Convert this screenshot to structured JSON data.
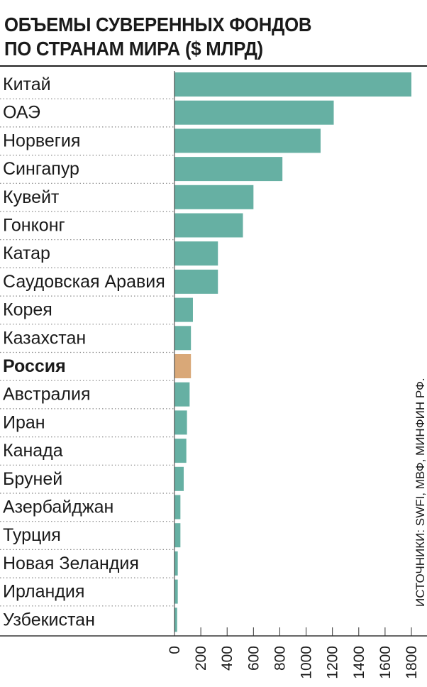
{
  "title_lines": [
    "ОБЪЕМЫ СУВЕРЕННЫХ ФОНДОВ",
    "ПО СТРАНАМ МИРА ($ МЛРД)"
  ],
  "source": "ИСТОЧНИКИ: SWFI, МВФ, МИНФИН РФ.",
  "colors": {
    "bar": "#66b0a3",
    "highlight": "#d9a878",
    "text": "#1a1a1a",
    "axis": "#333333",
    "dots": "#888888"
  },
  "chart_data": {
    "type": "bar",
    "orientation": "horizontal",
    "title": "ОБЪЕМЫ СУВЕРЕННЫХ ФОНДОВ ПО СТРАНАМ МИРА ($ МЛРД)",
    "categories": [
      "Китай",
      "ОАЭ",
      "Норвегия",
      "Сингапур",
      "Кувейт",
      "Гонконг",
      "Катар",
      "Саудовская Аравия",
      "Корея",
      "Казахстан",
      "Россия",
      "Австралия",
      "Иран",
      "Канада",
      "Бруней",
      "Азербайджан",
      "Турция",
      "Новая Зеландия",
      "Ирландия",
      "Узбекистан"
    ],
    "values": [
      1800,
      1210,
      1110,
      820,
      600,
      520,
      330,
      330,
      140,
      125,
      125,
      115,
      95,
      90,
      70,
      45,
      45,
      25,
      25,
      20
    ],
    "highlight": "Россия",
    "xlim": [
      0,
      1800
    ],
    "xticks": [
      0,
      200,
      400,
      600,
      800,
      1000,
      1200,
      1400,
      1600,
      1800
    ],
    "xlabel": "",
    "ylabel": ""
  }
}
